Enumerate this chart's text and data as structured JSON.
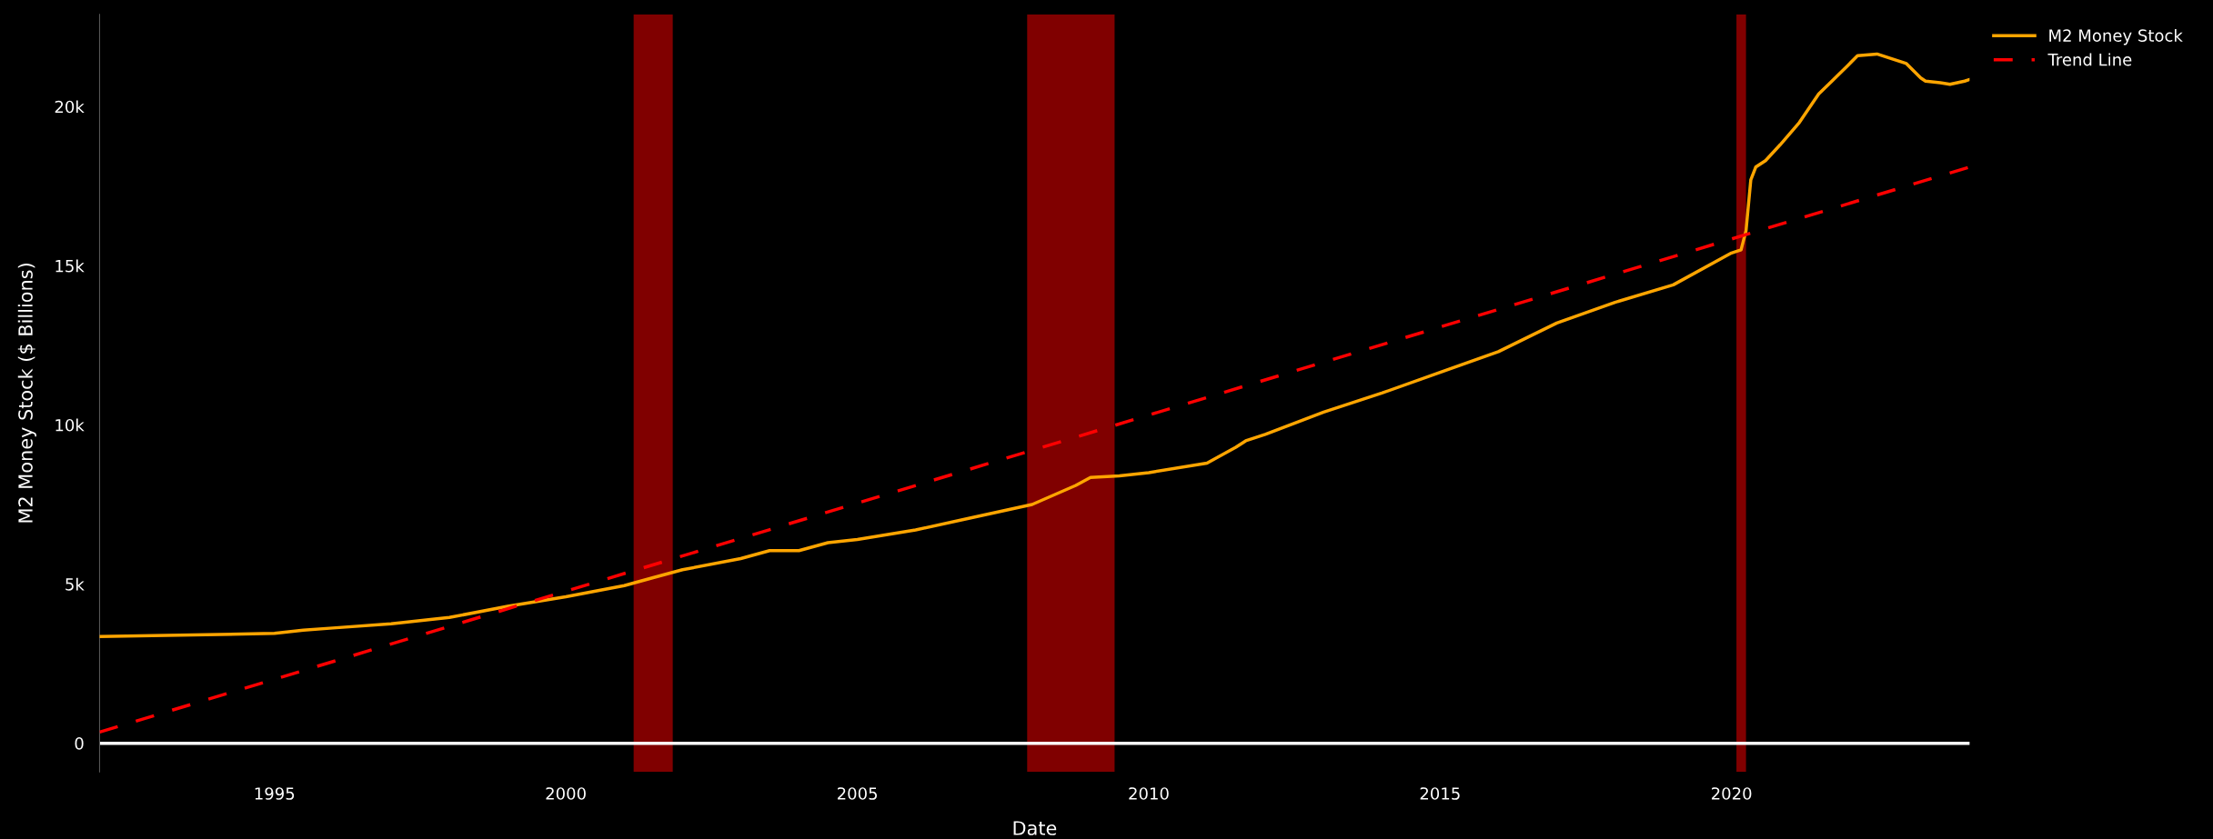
{
  "chart_data": {
    "type": "line",
    "xlabel": "Date",
    "ylabel": "M2 Money Stock ($ Billions)",
    "series": [
      {
        "name": "M2 Money Stock",
        "color": "#ffa500",
        "line_style": "solid",
        "x": [
          "1992-01",
          "1995-01",
          "1995-07",
          "1996-01",
          "1997-01",
          "1998-01",
          "1999-01",
          "2000-01",
          "2001-01",
          "2001-07",
          "2002-01",
          "2003-01",
          "2003-07",
          "2004-01",
          "2004-07",
          "2005-01",
          "2006-01",
          "2007-01",
          "2008-01",
          "2008-10",
          "2009-01",
          "2009-07",
          "2010-01",
          "2011-01",
          "2011-07",
          "2011-09",
          "2012-01",
          "2013-01",
          "2014-01",
          "2015-01",
          "2016-01",
          "2017-01",
          "2018-01",
          "2019-01",
          "2020-01",
          "2020-03",
          "2020-04",
          "2020-05",
          "2020-06",
          "2020-08",
          "2020-11",
          "2021-03",
          "2021-07",
          "2021-09",
          "2022-01",
          "2022-03",
          "2022-07",
          "2022-10",
          "2023-01",
          "2023-04",
          "2023-05",
          "2023-08",
          "2023-10",
          "2024-01",
          "2024-02"
        ],
        "values": [
          3350,
          3450,
          3550,
          3620,
          3750,
          3950,
          4300,
          4600,
          4950,
          5200,
          5450,
          5800,
          6050,
          6050,
          6300,
          6400,
          6700,
          7100,
          7500,
          8100,
          8350,
          8400,
          8500,
          8800,
          9300,
          9500,
          9700,
          10400,
          11000,
          11650,
          12300,
          13200,
          13850,
          14400,
          15400,
          15500,
          16100,
          17700,
          18100,
          18300,
          18800,
          19500,
          20400,
          20700,
          21300,
          21600,
          21650,
          21500,
          21350,
          20900,
          20800,
          20750,
          20700,
          20800,
          20850
        ]
      },
      {
        "name": "Trend Line",
        "color": "#ff0000",
        "line_style": "dashed",
        "x": [
          "1992-01",
          "2024-02"
        ],
        "values": [
          350,
          18100
        ]
      }
    ],
    "xlim": [
      "1992-01",
      "2024-02"
    ],
    "ylim": [
      -900,
      22900
    ],
    "xticks": [
      "1995",
      "2000",
      "2005",
      "2010",
      "2015",
      "2020"
    ],
    "yticks": [
      0,
      {
        "value": 5000,
        "label": "5k"
      },
      {
        "value": 10000,
        "label": "10k"
      },
      {
        "value": 15000,
        "label": "15k"
      },
      {
        "value": 20000,
        "label": "20k"
      }
    ],
    "ref_lines": [
      {
        "axis": "y",
        "value": 0,
        "color": "#ffffff"
      }
    ],
    "bands": [
      {
        "axis": "x",
        "from": "2001-03",
        "to": "2001-11",
        "color": "#800000"
      },
      {
        "axis": "x",
        "from": "2007-12",
        "to": "2009-06",
        "color": "#800000"
      },
      {
        "axis": "x",
        "from": "2020-02",
        "to": "2020-04",
        "color": "#800000"
      }
    ],
    "grid": false,
    "legend": "top right"
  }
}
